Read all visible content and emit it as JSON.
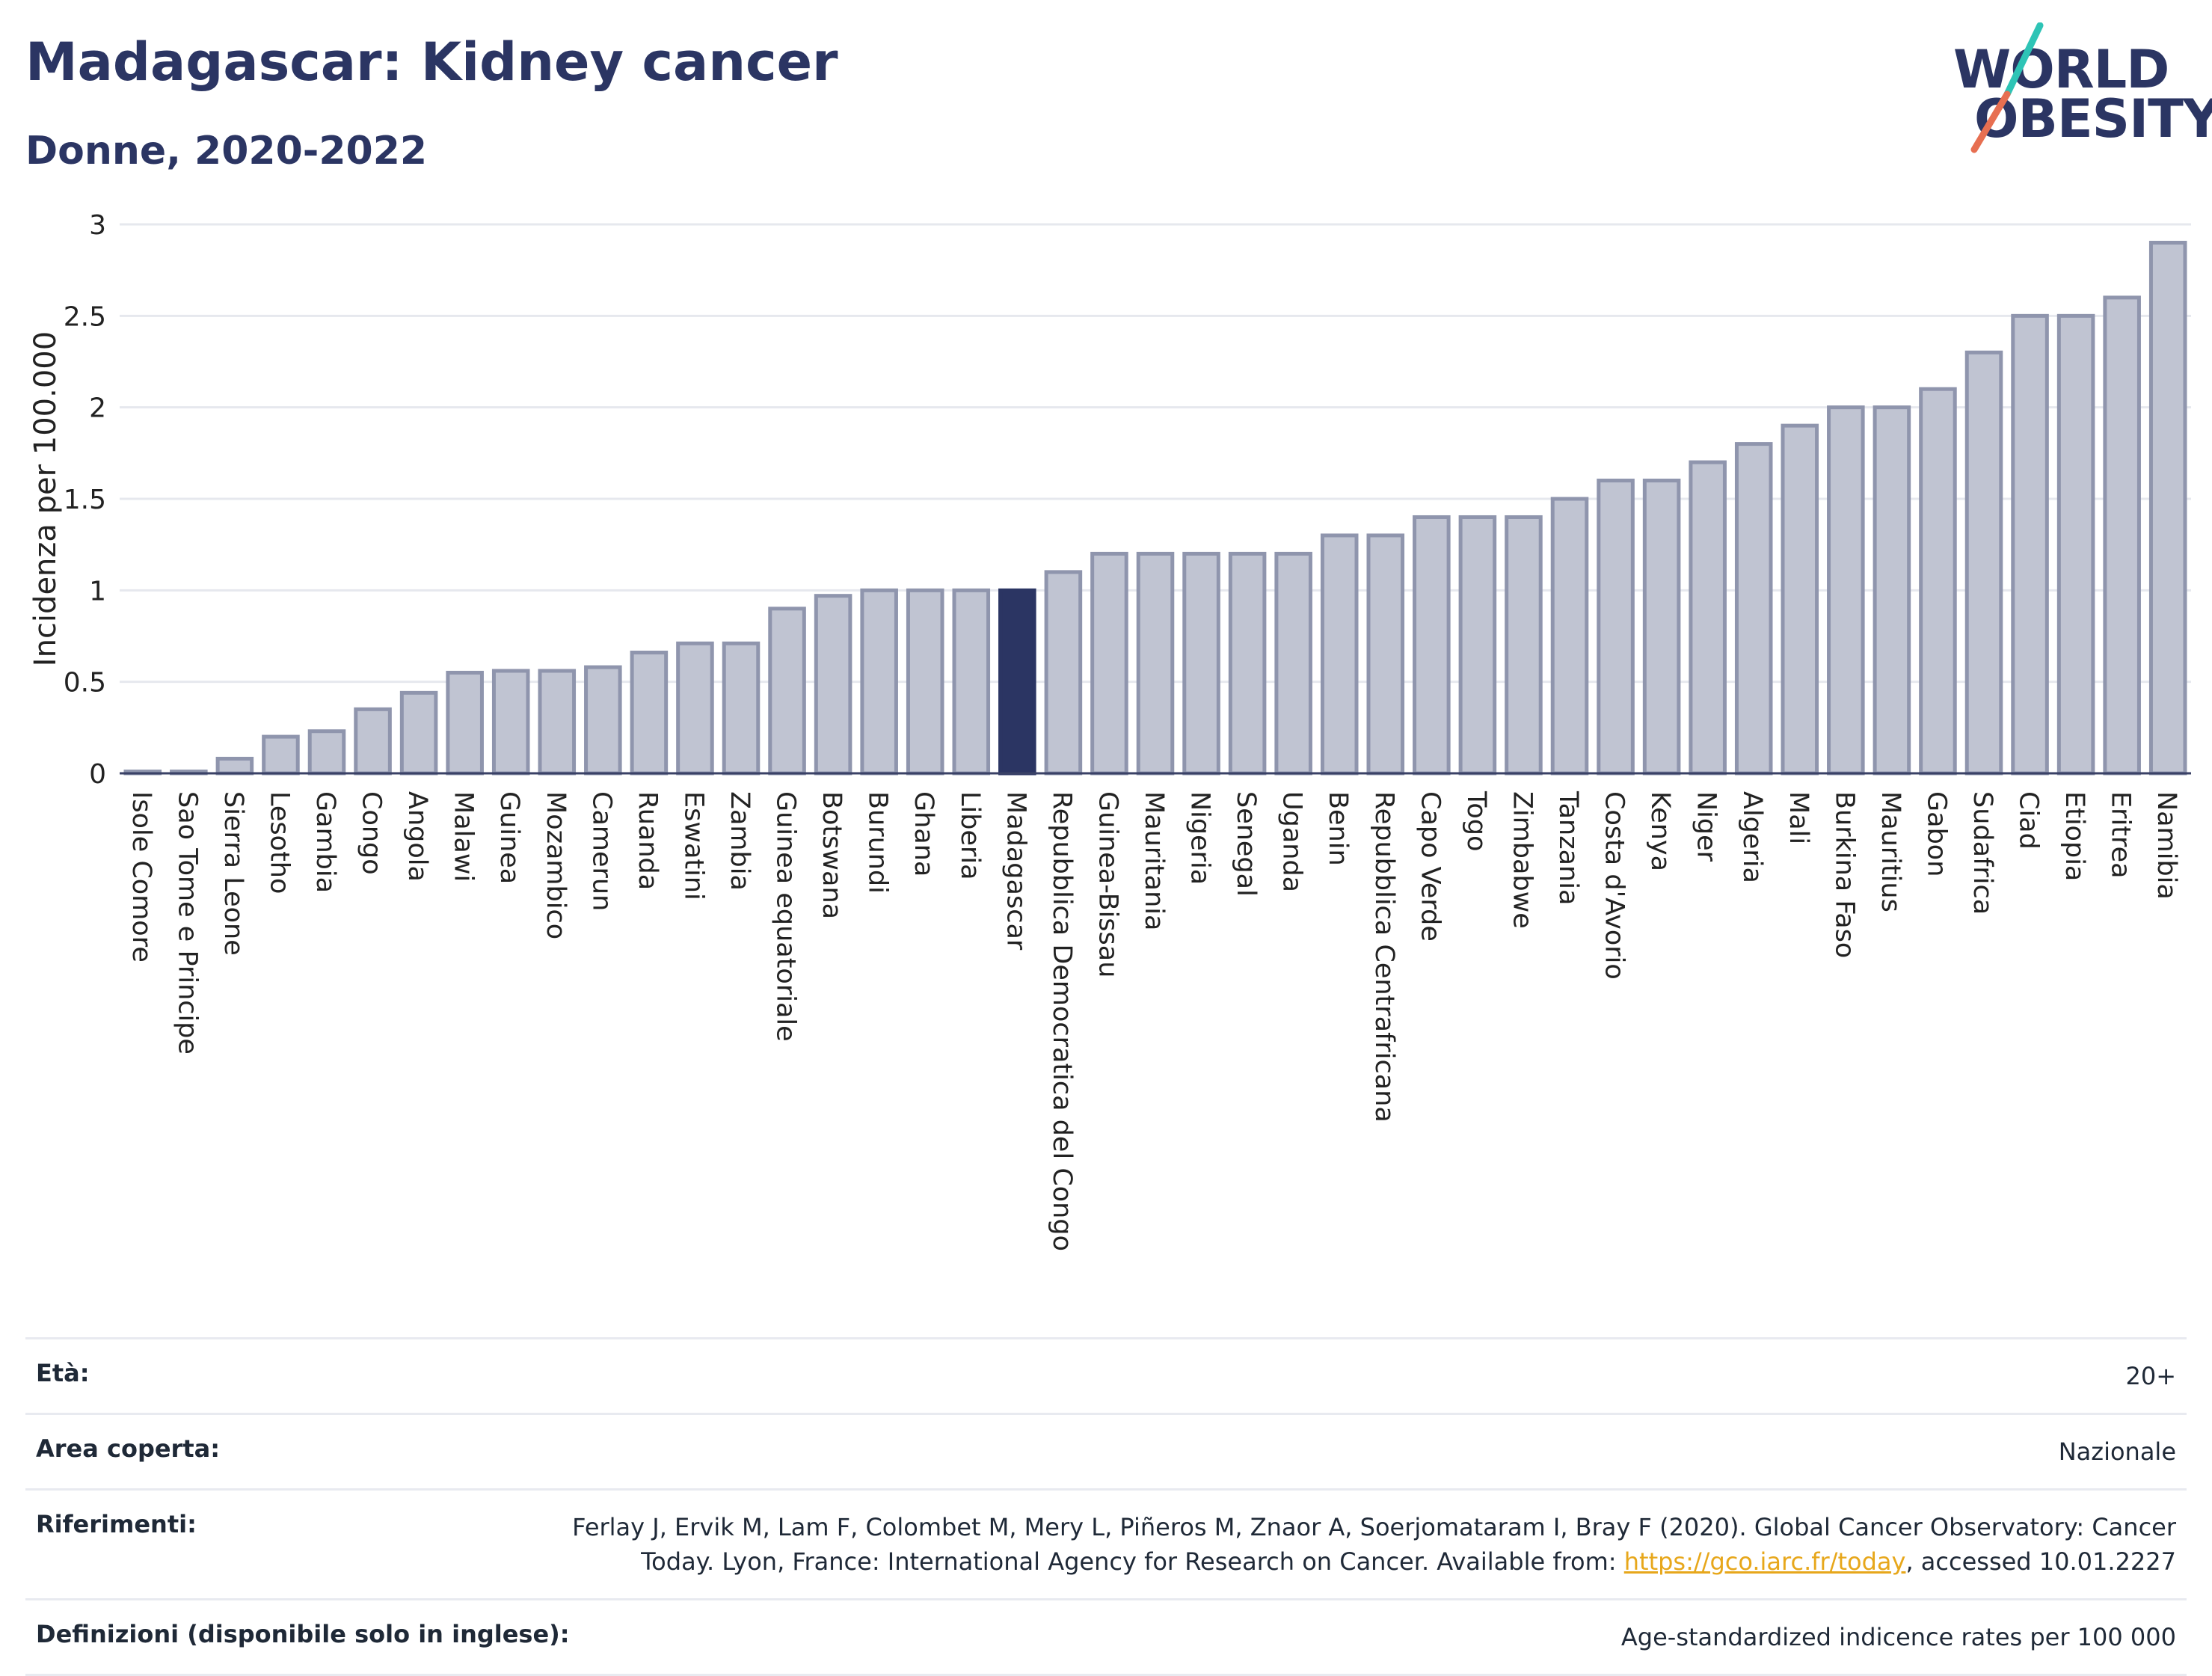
{
  "header": {
    "title": "Madagascar: Kidney cancer",
    "subtitle": "Donne, 2020-2022",
    "logo_line1": "WORLD",
    "logo_line2": "OBESITY"
  },
  "colors": {
    "bar_default": "#c0c4d2",
    "bar_default_stroke": "#8f95ad",
    "bar_highlight": "#2b3563",
    "logo_slash_top": "#2ec4b6",
    "logo_slash_bottom": "#e76f51",
    "link": "#e7a71b"
  },
  "chart_data": {
    "type": "bar",
    "ylabel": "Incidenza per 100.000",
    "ylim": [
      0,
      3
    ],
    "yticks": [
      "0",
      "0.5",
      "1",
      "1.5",
      "2",
      "2.5",
      "3"
    ],
    "grid": true,
    "highlight": "Madagascar",
    "categories": [
      "Isole Comore",
      "Sao Tome e Principe",
      "Sierra Leone",
      "Lesotho",
      "Gambia",
      "Congo",
      "Angola",
      "Malawi",
      "Guinea",
      "Mozambico",
      "Camerun",
      "Ruanda",
      "Eswatini",
      "Zambia",
      "Guinea equatoriale",
      "Botswana",
      "Burundi",
      "Ghana",
      "Liberia",
      "Madagascar",
      "Repubblica Democratica del Congo",
      "Guinea-Bissau",
      "Mauritania",
      "Nigeria",
      "Senegal",
      "Uganda",
      "Benin",
      "Repubblica Centrafricana",
      "Capo Verde",
      "Togo",
      "Zimbabwe",
      "Tanzania",
      "Costa d'Avorio",
      "Kenya",
      "Niger",
      "Algeria",
      "Mali",
      "Burkina Faso",
      "Mauritius",
      "Gabon",
      "Sudafrica",
      "Ciad",
      "Etiopia",
      "Eritrea",
      "Namibia"
    ],
    "values": [
      0.01,
      0.01,
      0.08,
      0.2,
      0.23,
      0.35,
      0.44,
      0.55,
      0.56,
      0.56,
      0.58,
      0.66,
      0.71,
      0.71,
      0.9,
      0.97,
      1.0,
      1.0,
      1.0,
      1.0,
      1.1,
      1.2,
      1.2,
      1.2,
      1.2,
      1.2,
      1.3,
      1.3,
      1.4,
      1.4,
      1.4,
      1.5,
      1.6,
      1.6,
      1.7,
      1.8,
      1.9,
      2.0,
      2.0,
      2.1,
      2.3,
      2.5,
      2.5,
      2.6,
      2.9
    ]
  },
  "info": {
    "age_label": "Età:",
    "age_value": "20+",
    "area_label": "Area coperta:",
    "area_value": "Nazionale",
    "refs_label": "Riferimenti:",
    "refs_line1": "Ferlay J, Ervik M, Lam F, Colombet M, Mery L, Piñeros M, Znaor A, Soerjomataram I, Bray F (2020). Global Cancer Observatory: Cancer",
    "refs_line2_pre": "Today. Lyon, France: International Agency for Research on Cancer. Available from: ",
    "refs_link": "https://gco.iarc.fr/today",
    "refs_line2_post": ", accessed 10.01.2227",
    "defs_label": "Definizioni (disponibile solo in inglese):",
    "defs_value": "Age-standardized indicence rates per 100 000"
  }
}
